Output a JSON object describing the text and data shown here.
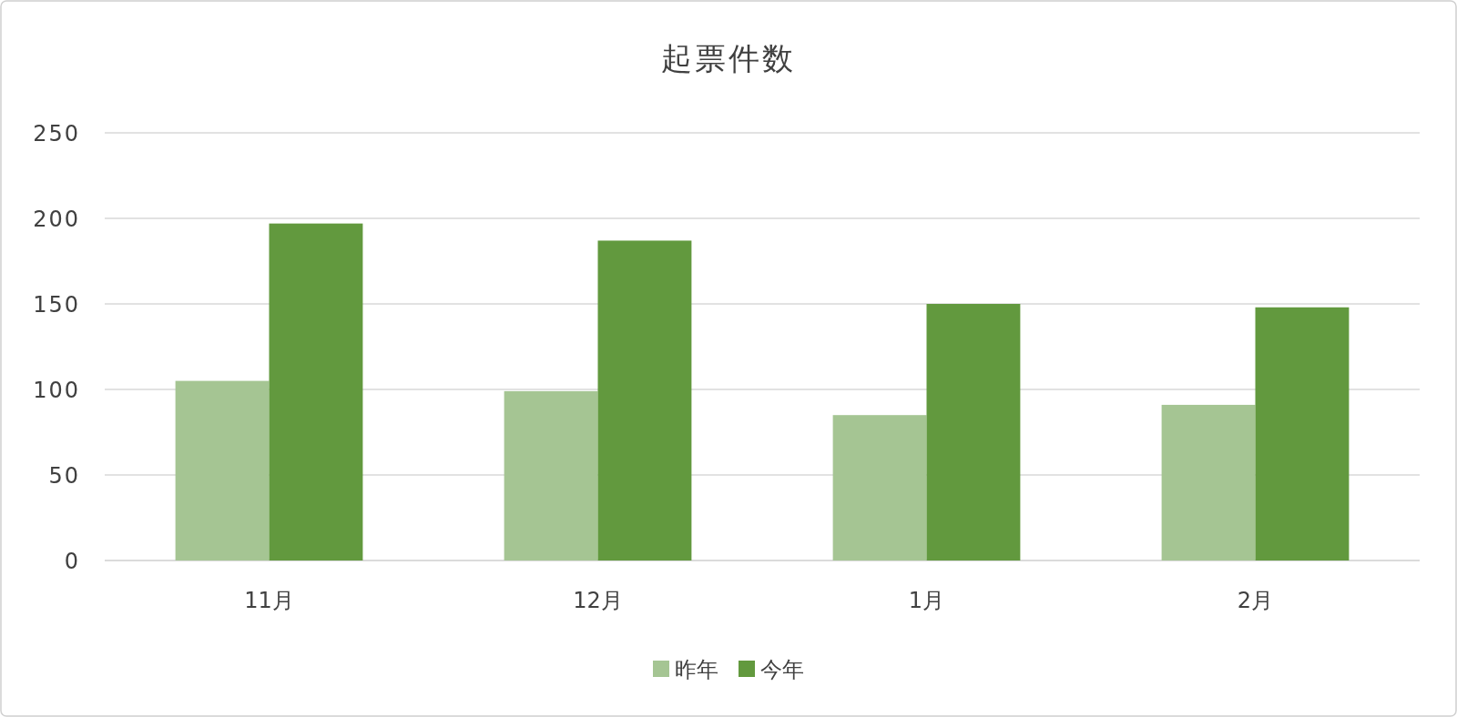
{
  "chart_data": {
    "type": "bar",
    "title": "起票件数",
    "categories": [
      "11月",
      "12月",
      "1月",
      "2月"
    ],
    "series": [
      {
        "name": "昨年",
        "color": "#a5c593",
        "values": [
          105,
          99,
          85,
          91
        ]
      },
      {
        "name": "今年",
        "color": "#62993e",
        "values": [
          197,
          187,
          150,
          148
        ]
      }
    ],
    "ylim": [
      0,
      250
    ],
    "yticks": [
      0,
      50,
      100,
      150,
      200,
      250
    ],
    "grid": "y",
    "legend": "bottom"
  }
}
